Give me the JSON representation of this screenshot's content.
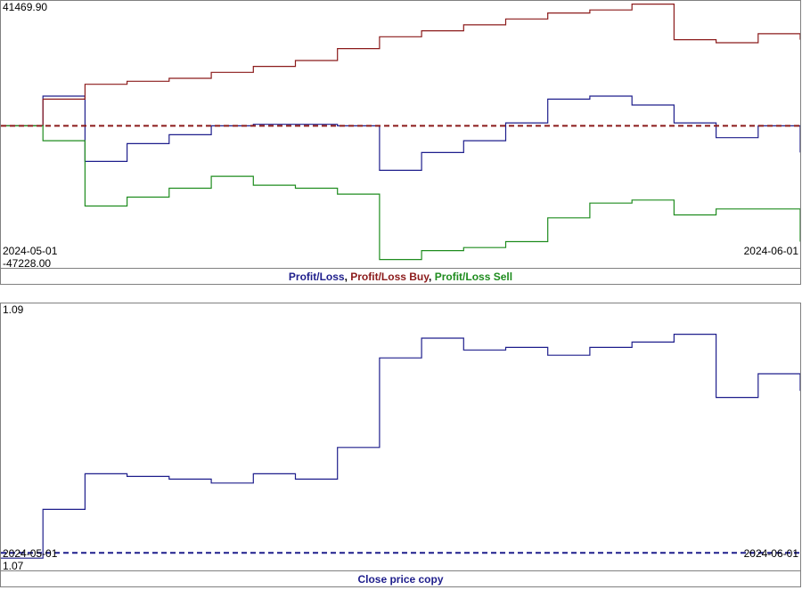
{
  "charts": {
    "top": {
      "y_max_label": "41469.90",
      "y_min_label": "-47228.00",
      "x_start_label": "2024-05-01",
      "x_end_label": "2024-06-01",
      "legend": [
        {
          "text": "Profit/Loss",
          "color": "#1e1e8c"
        },
        {
          "text": "Profit/Loss Buy",
          "color": "#8b1a1a"
        },
        {
          "text": "Profit/Loss Sell",
          "color": "#1e8c1e"
        }
      ]
    },
    "bottom": {
      "y_max_label": "1.09",
      "y_min_label": "1.07",
      "x_start_label": "2024-05-01",
      "x_end_label": "2024-06-01",
      "legend": [
        {
          "text": "Close price copy",
          "color": "#1e1e8c"
        }
      ]
    }
  },
  "chart_data": [
    {
      "type": "line",
      "title": "",
      "x": [
        "2024-05-01",
        "2024-05-02",
        "2024-05-03",
        "2024-05-04",
        "2024-05-06",
        "2024-05-08",
        "2024-05-10",
        "2024-05-12",
        "2024-05-14",
        "2024-05-16",
        "2024-05-18",
        "2024-05-20",
        "2024-05-22",
        "2024-05-24",
        "2024-05-26",
        "2024-05-28",
        "2024-05-29",
        "2024-05-30",
        "2024-05-31",
        "2024-06-01"
      ],
      "series": [
        {
          "name": "Profit/Loss",
          "color": "#1e1e8c",
          "values": [
            0,
            10000,
            -12000,
            -6000,
            -3000,
            0,
            500,
            500,
            0,
            -15000,
            -9000,
            -5000,
            1000,
            9000,
            10000,
            7000,
            1000,
            -4000,
            0,
            -9000
          ]
        },
        {
          "name": "Profit/Loss Buy",
          "color": "#8b1a1a",
          "values": [
            0,
            9000,
            14000,
            15000,
            16000,
            18000,
            20000,
            22000,
            26000,
            30000,
            32000,
            34000,
            36000,
            38000,
            39000,
            41000,
            29000,
            28000,
            31000,
            29000
          ]
        },
        {
          "name": "Profit/Loss Sell",
          "color": "#1e8c1e",
          "values": [
            0,
            -5000,
            -27000,
            -24000,
            -21000,
            -17000,
            -20000,
            -21000,
            -23000,
            -45000,
            -42000,
            -41000,
            -39000,
            -31000,
            -26000,
            -25000,
            -30000,
            -28000,
            -28000,
            -39000
          ]
        },
        {
          "name": "",
          "color": "#8b1a1a",
          "dashed": true,
          "values": [
            0,
            0,
            0,
            0,
            0,
            0,
            0,
            0,
            0,
            0,
            0,
            0,
            0,
            0,
            0,
            0,
            0,
            0,
            0,
            0
          ]
        }
      ],
      "ylim": [
        -47228.0,
        41469.9
      ],
      "xlabel": "",
      "ylabel": "",
      "grid": false,
      "legend_position": "bottom"
    },
    {
      "type": "line",
      "title": "",
      "x": [
        "2024-05-01",
        "2024-05-02",
        "2024-05-03",
        "2024-05-04",
        "2024-05-06",
        "2024-05-08",
        "2024-05-10",
        "2024-05-12",
        "2024-05-14",
        "2024-05-16",
        "2024-05-18",
        "2024-05-20",
        "2024-05-22",
        "2024-05-24",
        "2024-05-26",
        "2024-05-28",
        "2024-05-29",
        "2024-05-30",
        "2024-05-31",
        "2024-06-01"
      ],
      "series": [
        {
          "name": "Close price copy",
          "color": "#1e1e8c",
          "values": [
            1.0708,
            1.0745,
            1.0772,
            1.077,
            1.0768,
            1.0765,
            1.0772,
            1.0768,
            1.0792,
            1.086,
            1.0875,
            1.0866,
            1.0868,
            1.0862,
            1.0868,
            1.0872,
            1.0878,
            1.083,
            1.0848,
            1.0835
          ]
        },
        {
          "name": "",
          "color": "#1e1e8c",
          "dashed": true,
          "values": [
            1.0712,
            1.0712,
            1.0712,
            1.0712,
            1.0712,
            1.0712,
            1.0712,
            1.0712,
            1.0712,
            1.0712,
            1.0712,
            1.0712,
            1.0712,
            1.0712,
            1.0712,
            1.0712,
            1.0712,
            1.0712,
            1.0712,
            1.0712
          ]
        }
      ],
      "ylim": [
        1.07,
        1.09
      ],
      "xlabel": "",
      "ylabel": "",
      "grid": false,
      "legend_position": "bottom"
    }
  ]
}
